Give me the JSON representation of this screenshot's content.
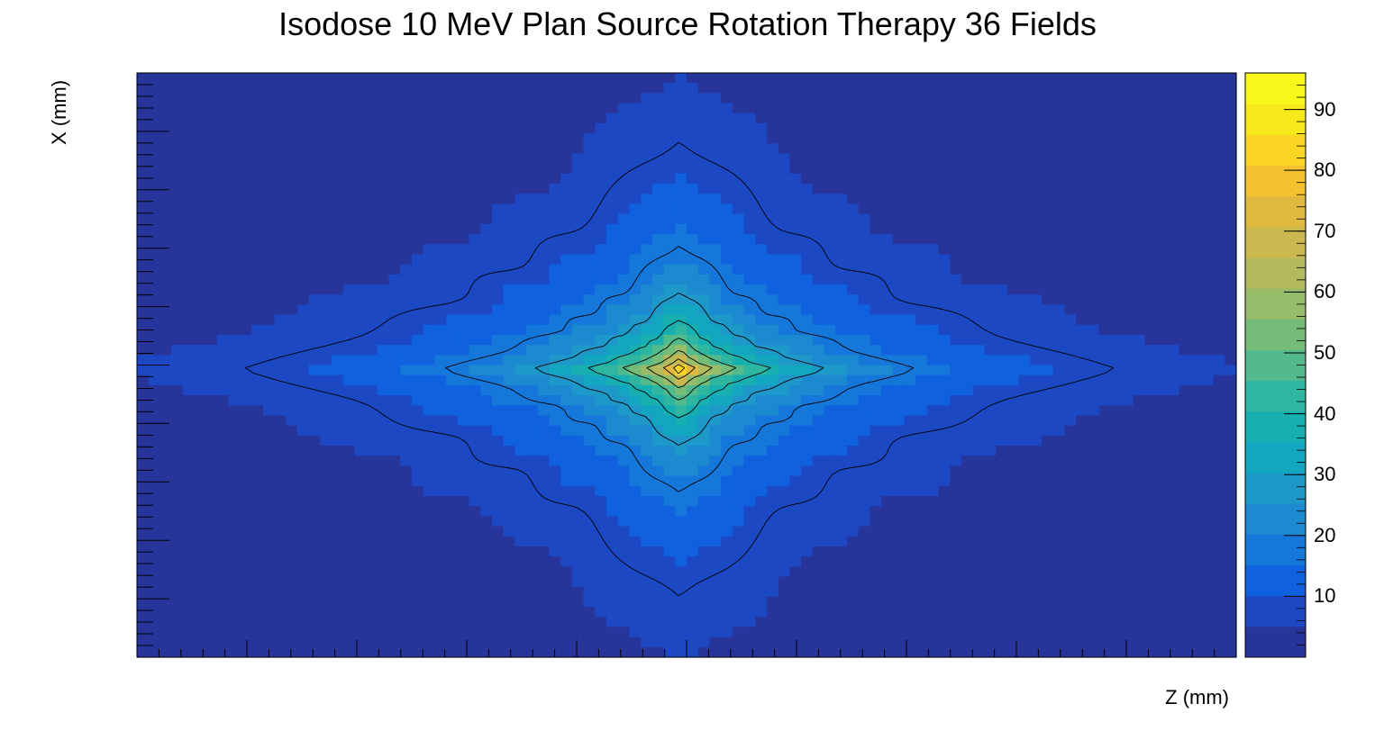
{
  "chart_data": {
    "type": "heatmap",
    "title": "Isodose 10 MeV Plan Source  Rotation Therapy 36 Fields",
    "xlabel": "Z (mm)",
    "ylabel": "X (mm)",
    "colorbar": {
      "range": [
        0,
        96
      ],
      "ticks": [
        10,
        20,
        30,
        40,
        50,
        60,
        70,
        80,
        90
      ],
      "tick_labels": [
        "10",
        "20",
        "30",
        "40",
        "50",
        "60",
        "70",
        "80",
        "90"
      ],
      "palette": [
        "#27359a",
        "#1d48c4",
        "#0f61df",
        "#1477d9",
        "#1b8ad0",
        "#1d98c9",
        "#13a6c0",
        "#18afb0",
        "#2fb6a0",
        "#52ba8c",
        "#76bc79",
        "#97bc6a",
        "#b4ba5e",
        "#cdb74f",
        "#e2b940",
        "#f4c22f",
        "#fbd524",
        "#f7e81a",
        "#f8f81a"
      ]
    },
    "peak_dose": 96,
    "contour_levels": [
      8,
      18,
      28,
      38,
      48,
      58,
      68,
      78,
      88
    ],
    "dose_model": "star-shaped isodose distribution, maximum at the isocentre, 36 rotation spikes",
    "grid": false
  },
  "colors": {
    "contour": "#000000",
    "frame": "#000000"
  }
}
